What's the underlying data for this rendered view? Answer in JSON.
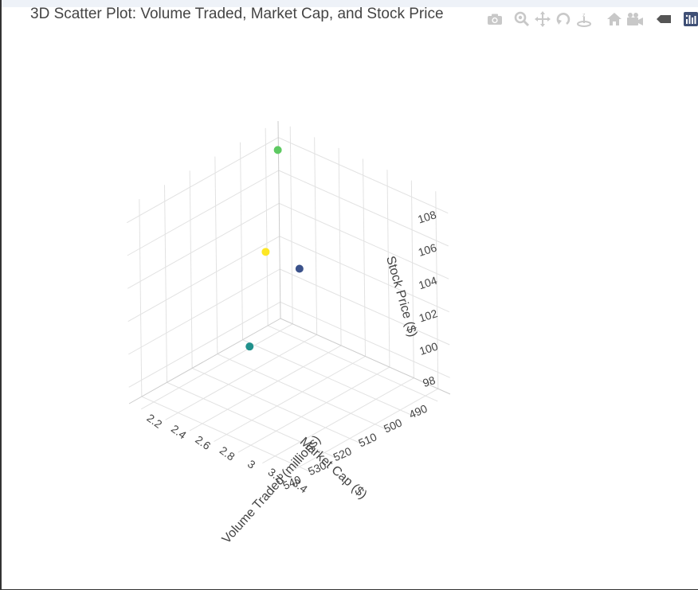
{
  "title": "3D Scatter Plot: Volume Traded, Market Cap, and Stock Price",
  "modebar": {
    "icons": [
      "camera-icon",
      "zoom-icon",
      "pan-icon",
      "orbit-rotation-icon",
      "turntable-rotation-icon",
      "home-icon",
      "camera-view-icon",
      "hover-spike-icon",
      "plotly-logo-icon"
    ]
  },
  "chart_data": {
    "type": "scatter",
    "subtype": "scatter3d",
    "title": "3D Scatter Plot: Volume Traded, Market Cap, and Stock Price",
    "xlabel": "Volume Traded (millions)",
    "ylabel": "Market Cap ($)",
    "zlabel": "Stock Price ($)",
    "x_ticks": [
      "2.2",
      "2.4",
      "2.6",
      "2.8",
      "3",
      "3.2",
      "3.4"
    ],
    "y_ticks": [
      "490",
      "500",
      "510",
      "520",
      "530",
      "540"
    ],
    "z_ticks": [
      "98",
      "100",
      "102",
      "104",
      "106",
      "108"
    ],
    "xlim": [
      2.1,
      3.5
    ],
    "ylim": [
      485,
      545
    ],
    "zlim": [
      97,
      109
    ],
    "grid": true,
    "colorscale": "viridis",
    "points": [
      {
        "x": 2.2,
        "y": 490,
        "z": 108,
        "color": "#5ec962"
      },
      {
        "x": 2.3,
        "y": 500,
        "z": 103,
        "color": "#fde725"
      },
      {
        "x": 3.0,
        "y": 520,
        "z": 106,
        "color": "#3b528b"
      },
      {
        "x": 3.0,
        "y": 540,
        "z": 103,
        "color": "#21918c"
      }
    ]
  }
}
